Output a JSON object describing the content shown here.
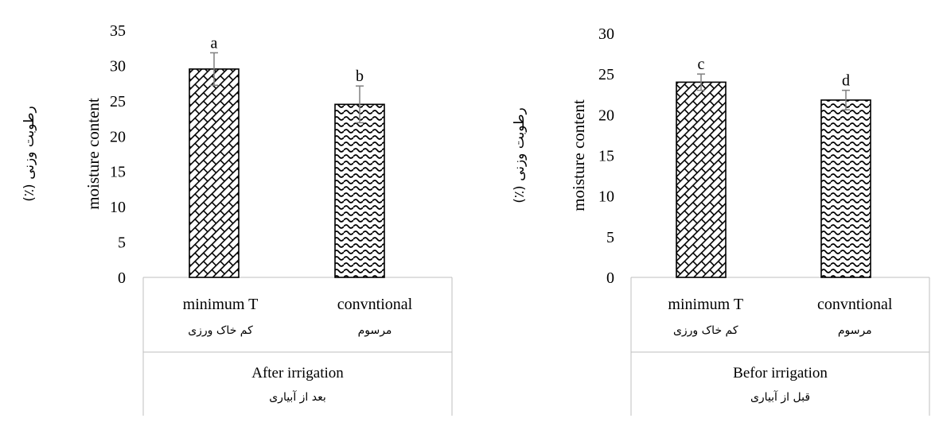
{
  "chart_data": [
    {
      "type": "bar",
      "ylabel": "moisture content",
      "ylabel_fa": "رطوبت وزنی (٪)",
      "ylim": [
        0,
        35
      ],
      "yticks": [
        0,
        5,
        10,
        15,
        20,
        25,
        30,
        35
      ],
      "grid": false,
      "group_label": "After irrigation",
      "group_label_fa": "بعد از آبیاری",
      "categories": [
        "minimum  T",
        "convntional"
      ],
      "categories_fa": [
        "کم خاک ورزی",
        "مرسوم"
      ],
      "values": [
        29.5,
        24.5
      ],
      "errors": [
        2.3,
        2.6
      ],
      "significance": [
        "a",
        "b"
      ],
      "patterns": [
        "diagonal-brick",
        "wave"
      ]
    },
    {
      "type": "bar",
      "ylabel": "moisture content",
      "ylabel_fa": "رطوبت وزنی (٪)",
      "ylim": [
        0,
        30
      ],
      "yticks": [
        0,
        5,
        10,
        15,
        20,
        25,
        30
      ],
      "grid": false,
      "group_label": "Befor irrigation",
      "group_label_fa": "قبل از آبیاری",
      "categories": [
        "minimum  T",
        "convntional"
      ],
      "categories_fa": [
        "کم خاک ورزی",
        "مرسوم"
      ],
      "values": [
        24.0,
        21.8
      ],
      "errors": [
        1.0,
        1.2
      ],
      "significance": [
        "c",
        "d"
      ],
      "patterns": [
        "diagonal-brick",
        "wave"
      ]
    }
  ]
}
